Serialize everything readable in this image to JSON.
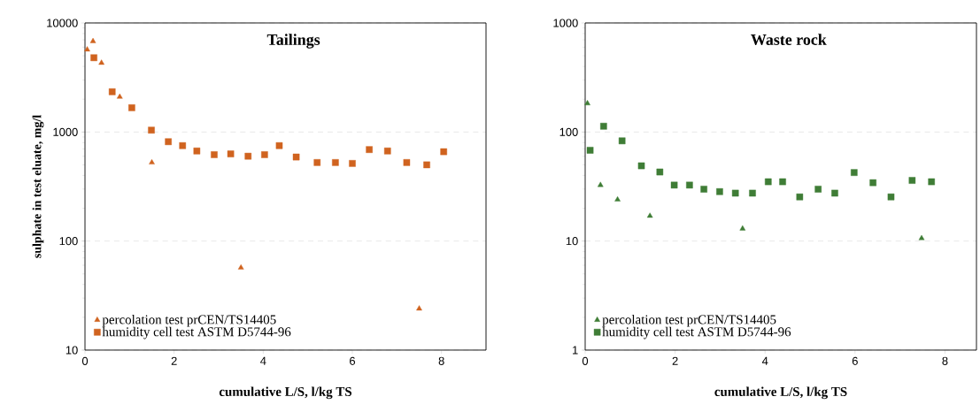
{
  "chart_data": [
    {
      "type": "scatter",
      "title": "Tailings",
      "xlabel": "cumulative L/S, l/kg TS",
      "ylabel": "sulphate in test eluate, mg/l",
      "log": "y",
      "grid": "y",
      "legend": "bottom left",
      "xlim": [
        0,
        9
      ],
      "ylim": [
        10,
        10000
      ],
      "xticks": [
        0,
        2,
        4,
        6,
        8
      ],
      "yticks": [
        10,
        100,
        1000,
        10000
      ],
      "series": [
        {
          "name": "percolation test prCEN/TS14405",
          "color": "#d0631f",
          "marker": "triangle",
          "x": [
            0.05,
            0.18,
            0.37,
            0.78,
            1.5,
            3.5,
            7.5
          ],
          "values": [
            5700,
            6800,
            4300,
            2100,
            525,
            57,
            24
          ]
        },
        {
          "name": "humidity cell test ASTM D5744-96",
          "color": "#d0631f",
          "marker": "square",
          "x": [
            0.2,
            0.61,
            1.05,
            1.49,
            1.87,
            2.19,
            2.51,
            2.9,
            3.27,
            3.66,
            4.03,
            4.36,
            4.74,
            5.21,
            5.62,
            6.0,
            6.38,
            6.79,
            7.22,
            7.67,
            8.05
          ],
          "values": [
            4800,
            2340,
            1670,
            1040,
            815,
            750,
            670,
            620,
            630,
            600,
            620,
            750,
            590,
            525,
            525,
            515,
            690,
            670,
            525,
            500,
            660
          ]
        }
      ]
    },
    {
      "type": "scatter",
      "title": "Waste rock",
      "xlabel": "cumulative L/S, l/kg TS",
      "log": "y",
      "grid": "y",
      "legend": "bottom left",
      "xlim": [
        0,
        8.7
      ],
      "ylim": [
        1,
        1000
      ],
      "xticks": [
        0,
        2,
        4,
        6,
        8
      ],
      "yticks": [
        1,
        10,
        100,
        1000
      ],
      "series": [
        {
          "name": "percolation test prCEN/TS14405",
          "color": "#3f7d36",
          "marker": "triangle",
          "x": [
            0.05,
            0.34,
            0.72,
            1.44,
            3.5,
            7.48
          ],
          "values": [
            183,
            32.6,
            24,
            17,
            13,
            10.6
          ]
        },
        {
          "name": "humidity cell test ASTM D5744-96",
          "color": "#3f7d36",
          "marker": "square",
          "x": [
            0.11,
            0.41,
            0.82,
            1.25,
            1.66,
            1.98,
            2.32,
            2.64,
            2.99,
            3.34,
            3.72,
            4.07,
            4.39,
            4.77,
            5.18,
            5.55,
            5.98,
            6.4,
            6.8,
            7.27,
            7.7
          ],
          "values": [
            68,
            113,
            83,
            49,
            43,
            32.6,
            32.6,
            29.9,
            28.4,
            27.5,
            27.5,
            35,
            35,
            25.4,
            29.9,
            27.5,
            42.5,
            34.3,
            25.4,
            36,
            35
          ]
        }
      ]
    }
  ]
}
